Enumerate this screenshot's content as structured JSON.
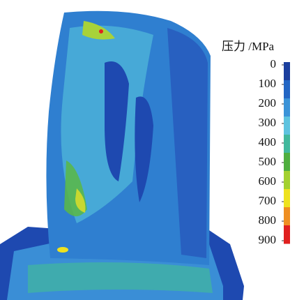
{
  "legend": {
    "title": "压力 /MPa",
    "ticks": [
      0,
      100,
      200,
      300,
      400,
      500,
      600,
      700,
      800,
      900
    ],
    "colors": [
      "#1b3f9e",
      "#2366c4",
      "#3b93d8",
      "#5ec3df",
      "#41b89c",
      "#4fae3f",
      "#a3d12f",
      "#eee21f",
      "#ef8f22",
      "#e0201f"
    ]
  }
}
